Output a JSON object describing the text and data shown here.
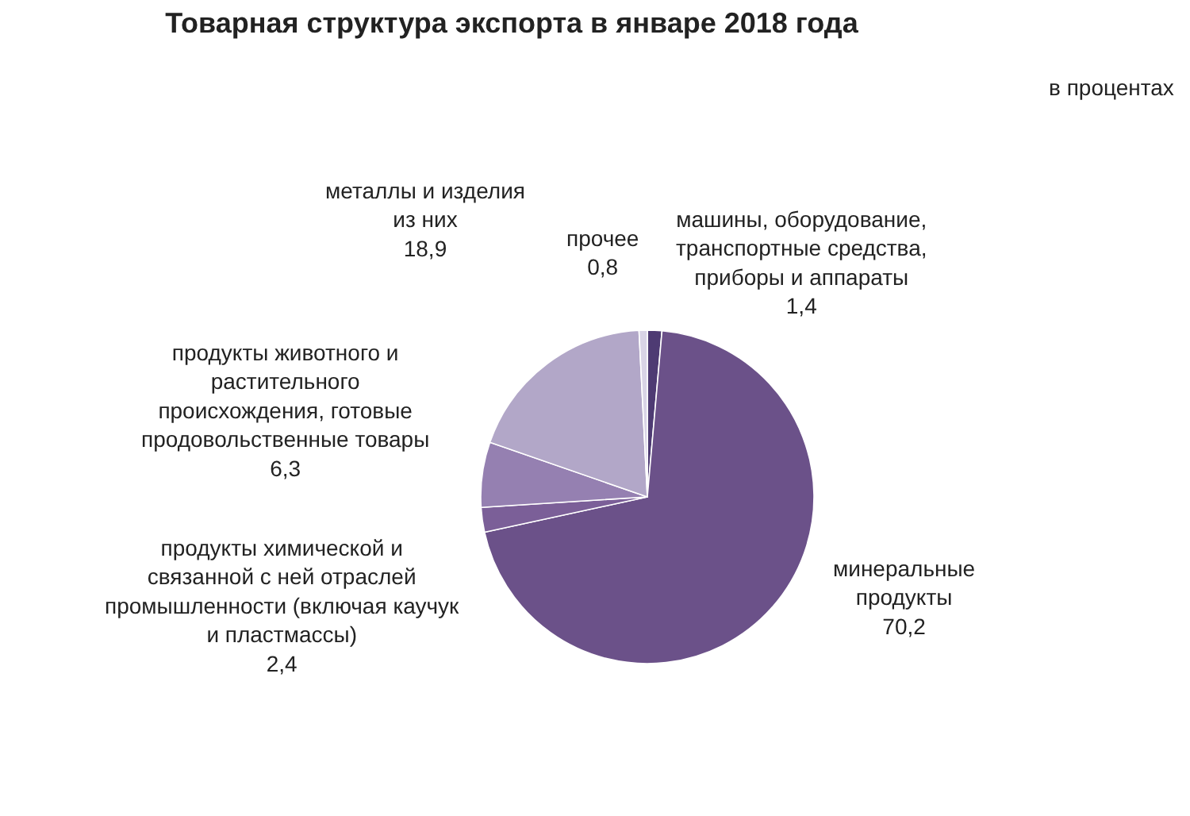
{
  "chart_data": {
    "type": "pie",
    "title": "Товарная структура экспорта в январе 2018 года",
    "subtitle": "в процентах",
    "categories": [
      "машины, оборудование, транспортные средства, приборы и аппараты",
      "минеральные продукты",
      "продукты химической и связанной с ней отраслей промышленности (включая каучук и пластмассы)",
      "продукты животного и растительного происхождения, готовые продовольственные товары",
      "металлы и изделия из них",
      "прочее"
    ],
    "values": [
      1.4,
      70.2,
      2.4,
      6.3,
      18.9,
      0.8
    ],
    "value_labels": [
      "1,4",
      "70,2",
      "2,4",
      "6,3",
      "18,9",
      "0,8"
    ],
    "colors": [
      "#4e3b73",
      "#6b5189",
      "#7b5f98",
      "#9580b1",
      "#b2a7c8",
      "#d9d4e6"
    ]
  }
}
